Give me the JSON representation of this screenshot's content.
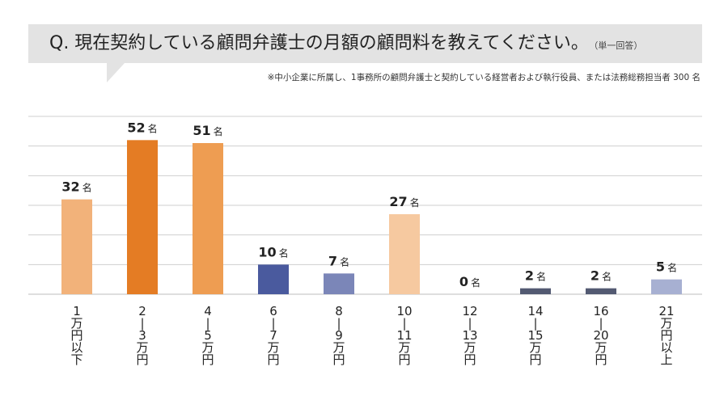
{
  "header": {
    "title": "Q. 現在契約している顧問弁護士の月額の顧問料を教えてください。",
    "title_note": "（単一回答）"
  },
  "footnote": "※中小企業に所属し、1事務所の顧問弁護士と契約している経営者および執行役員、または法務総務担当者 300 名",
  "chart_data": {
    "type": "bar",
    "unit": "名",
    "categories": [
      "1万円以下",
      "2−3万円",
      "4−5万円",
      "6−7万円",
      "8−9万円",
      "10−11万円",
      "12−13万円",
      "14−15万円",
      "16−20万円",
      "21万円以上"
    ],
    "category_label_lines": [
      [
        "1",
        "万",
        "円",
        "以",
        "下"
      ],
      [
        "2",
        "|",
        "3",
        "万",
        "円"
      ],
      [
        "4",
        "|",
        "5",
        "万",
        "円"
      ],
      [
        "6",
        "|",
        "7",
        "万",
        "円"
      ],
      [
        "8",
        "|",
        "9",
        "万",
        "円"
      ],
      [
        "10",
        "|",
        "11",
        "万",
        "円"
      ],
      [
        "12",
        "|",
        "13",
        "万",
        "円"
      ],
      [
        "14",
        "|",
        "15",
        "万",
        "円"
      ],
      [
        "16",
        "|",
        "20",
        "万",
        "円"
      ],
      [
        "21",
        "万",
        "円",
        "以",
        "上"
      ]
    ],
    "values": [
      32,
      52,
      51,
      10,
      7,
      27,
      0,
      2,
      2,
      5
    ],
    "colors": [
      "#f2b27a",
      "#e47c24",
      "#ee9d52",
      "#4a5a9e",
      "#7b86b8",
      "#f6c9a0",
      "#5c6480",
      "#535a72",
      "#535a72",
      "#a7b0d2"
    ],
    "ylim": [
      0,
      60
    ],
    "gridlines": [
      10,
      20,
      30,
      40,
      50,
      60
    ],
    "grid": true
  }
}
